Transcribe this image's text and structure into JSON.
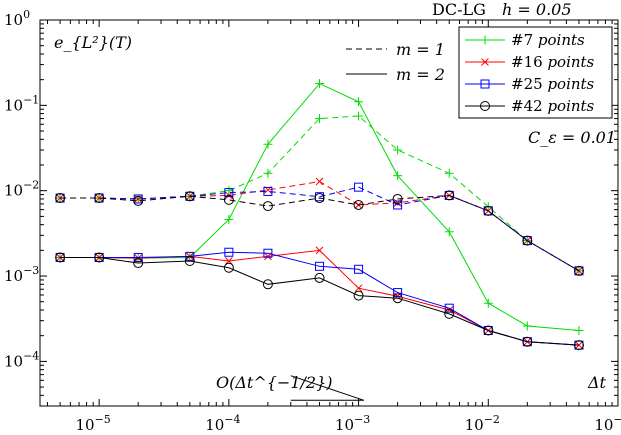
{
  "chart_data": {
    "type": "line",
    "title": "DC-LG",
    "title_param": "h = 0.05",
    "ylabel": "e_{L²}(T)",
    "xlabel": "Δt",
    "x_scale": "log",
    "y_scale": "log",
    "xlim": [
      3.5e-06,
      0.1
    ],
    "ylim": [
      3e-05,
      1
    ],
    "x_ticks": [
      1e-05,
      0.0001,
      0.001,
      0.01,
      0.1
    ],
    "x_tick_labels": [
      {
        "base": "10",
        "exp": "−5"
      },
      {
        "base": "10",
        "exp": "−4"
      },
      {
        "base": "10",
        "exp": "−3"
      },
      {
        "base": "10",
        "exp": "−2"
      },
      {
        "base": "10",
        "exp": "−1"
      }
    ],
    "y_ticks": [
      0.0001,
      0.001,
      0.01,
      0.1,
      1
    ],
    "y_tick_labels": [
      {
        "base": "10",
        "exp": "−4"
      },
      {
        "base": "10",
        "exp": "−3"
      },
      {
        "base": "10",
        "exp": "−2"
      },
      {
        "base": "10",
        "exp": "−1"
      },
      {
        "base": "10",
        "exp": "0"
      }
    ],
    "grid": false,
    "x": [
      5e-06,
      1e-05,
      2e-05,
      5e-05,
      0.0001,
      0.0002,
      0.0005,
      0.001,
      0.002,
      0.005,
      0.01,
      0.02,
      0.05
    ],
    "series": [
      {
        "name": "#7 points",
        "points": "7",
        "style": "m=2",
        "color": "#00dd00",
        "marker": "plus",
        "values": [
          0.00165,
          0.00165,
          0.00162,
          0.00165,
          0.0046,
          0.035,
          0.18,
          0.11,
          0.015,
          0.0033,
          0.00048,
          0.00026,
          0.00023
        ]
      },
      {
        "name": "#16 points",
        "points": "16",
        "style": "m=2",
        "color": "#ff0000",
        "marker": "x",
        "values": [
          0.00165,
          0.00165,
          0.00162,
          0.0017,
          0.0015,
          0.0017,
          0.002,
          0.00072,
          0.00058,
          0.0004,
          0.00023,
          0.00017,
          0.000155
        ]
      },
      {
        "name": "#25 points",
        "points": "25",
        "style": "m=2",
        "color": "#0000ff",
        "marker": "square",
        "values": [
          0.00165,
          0.00165,
          0.00165,
          0.0017,
          0.0019,
          0.00185,
          0.0013,
          0.0012,
          0.00064,
          0.00042,
          0.00023,
          0.00017,
          0.000155
        ]
      },
      {
        "name": "#42 points",
        "points": "42",
        "style": "m=2",
        "color": "#000000",
        "marker": "circle",
        "values": [
          0.00165,
          0.00165,
          0.00142,
          0.0015,
          0.00125,
          0.0008,
          0.00095,
          0.00059,
          0.00055,
          0.00036,
          0.00023,
          0.00017,
          0.000155
        ]
      },
      {
        "name": "#7 points",
        "points": "7",
        "style": "m=1",
        "color": "#00dd00",
        "marker": "plus",
        "values": [
          0.0082,
          0.0082,
          0.008,
          0.0086,
          0.01,
          0.016,
          0.07,
          0.075,
          0.03,
          0.016,
          0.0065,
          0.0026,
          0.00115
        ]
      },
      {
        "name": "#16 points",
        "points": "16",
        "style": "m=1",
        "color": "#ff0000",
        "marker": "x",
        "values": [
          0.0082,
          0.0082,
          0.008,
          0.0086,
          0.0088,
          0.0102,
          0.0128,
          0.0068,
          0.0072,
          0.0088,
          0.0058,
          0.0026,
          0.00115
        ]
      },
      {
        "name": "#25 points",
        "points": "25",
        "style": "m=1",
        "color": "#0000ff",
        "marker": "square",
        "values": [
          0.0082,
          0.0082,
          0.008,
          0.0086,
          0.0095,
          0.0098,
          0.0085,
          0.011,
          0.0068,
          0.0088,
          0.0058,
          0.0026,
          0.00115
        ]
      },
      {
        "name": "#42 points",
        "points": "42",
        "style": "m=1",
        "color": "#000000",
        "marker": "circle",
        "values": [
          0.0082,
          0.0082,
          0.0076,
          0.0086,
          0.0078,
          0.0066,
          0.0082,
          0.0068,
          0.008,
          0.0088,
          0.0058,
          0.0026,
          0.00115
        ]
      }
    ],
    "style_legend": [
      {
        "label": "m = 1",
        "dash": "dashed"
      },
      {
        "label": "m = 2",
        "dash": "solid"
      }
    ],
    "annotation_c": "C_ε = 0.01",
    "slope_label": "O(Δt^{−1/2})",
    "slope_triangle": {
      "x": [
        0.0003,
        0.0011
      ],
      "y": [
        6.8e-05,
        3.5e-05
      ]
    }
  }
}
